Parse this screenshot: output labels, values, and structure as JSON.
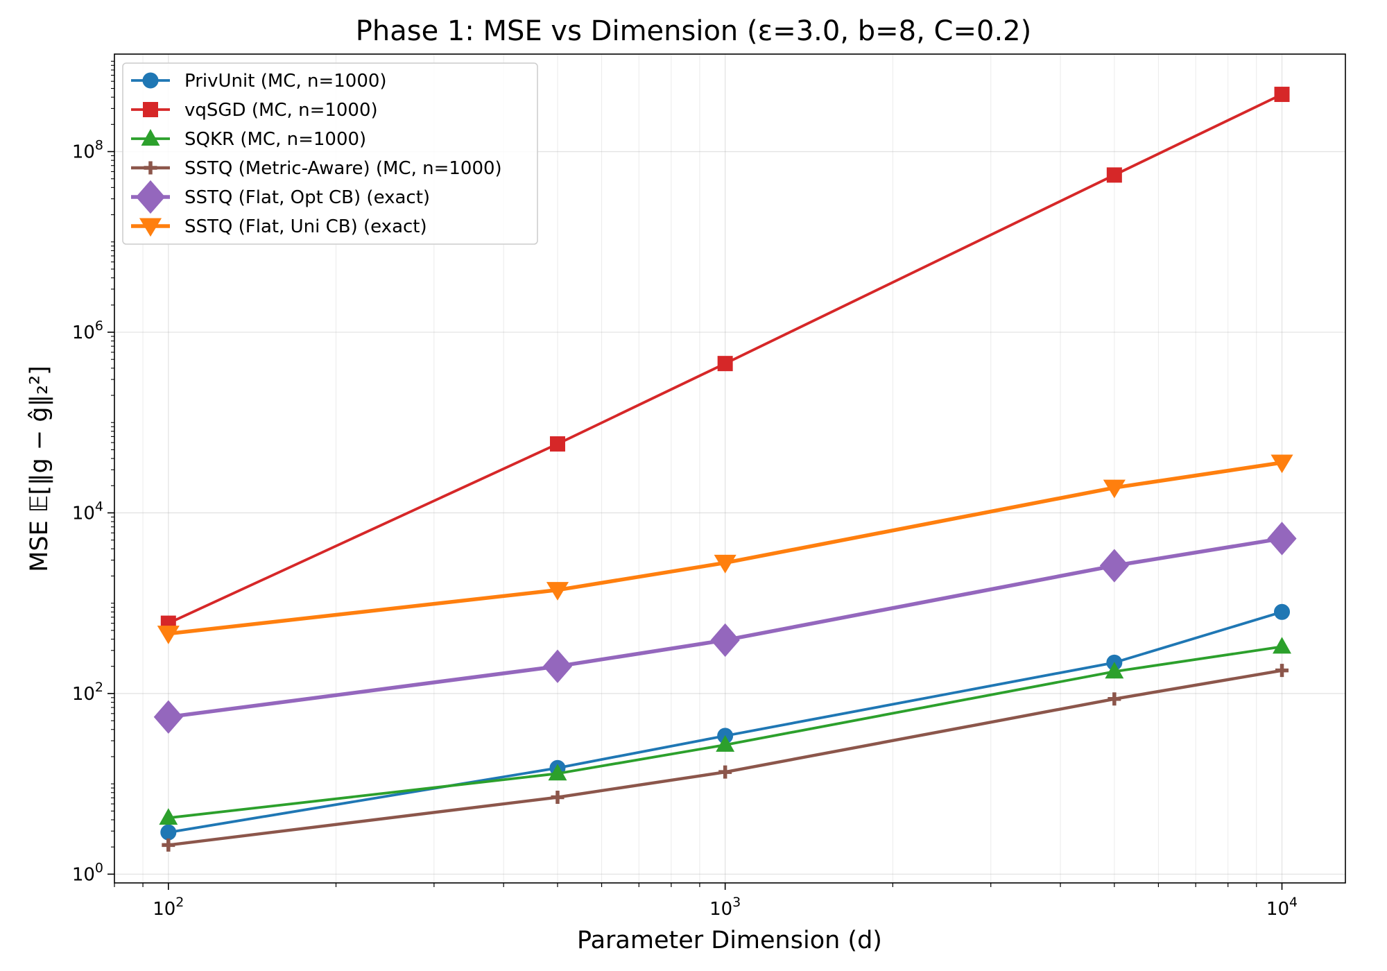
{
  "chart_data": {
    "type": "line",
    "title": "Phase 1: MSE vs Dimension (ε=3.0, b=8, C=0.2)",
    "xlabel": "Parameter Dimension (d)",
    "ylabel": "MSE  𝔼[‖g − ĝ‖₂²]",
    "xscale": "log",
    "yscale": "log",
    "xlim": [
      80,
      13000
    ],
    "ylim": [
      0.8,
      1200000000.0
    ],
    "x_ticks": [
      {
        "value": 100,
        "base": "10",
        "exp": "2"
      },
      {
        "value": 1000,
        "base": "10",
        "exp": "3"
      },
      {
        "value": 10000,
        "base": "10",
        "exp": "4"
      }
    ],
    "y_ticks": [
      {
        "value": 1,
        "base": "10",
        "exp": "0"
      },
      {
        "value": 100,
        "base": "10",
        "exp": "2"
      },
      {
        "value": 10000,
        "base": "10",
        "exp": "4"
      },
      {
        "value": 1000000,
        "base": "10",
        "exp": "6"
      },
      {
        "value": 100000000,
        "base": "10",
        "exp": "8"
      }
    ],
    "grid": true,
    "legend_position": "top-left",
    "x": [
      100,
      500,
      1000,
      5000,
      10000
    ],
    "series": [
      {
        "name": "PrivUnit (MC, n=1000)",
        "color": "#1f77b4",
        "marker": "circle",
        "values": [
          2.9,
          15,
          34,
          220,
          800
        ]
      },
      {
        "name": "vqSGD (MC, n=1000)",
        "color": "#d62728",
        "marker": "square",
        "values": [
          600,
          58000,
          450000,
          55000000,
          430000000
        ]
      },
      {
        "name": "SQKR (MC, n=1000)",
        "color": "#2ca02c",
        "marker": "triangle-up",
        "values": [
          4.2,
          13,
          27,
          175,
          330
        ]
      },
      {
        "name": "SSTQ (Metric-Aware) (MC, n=1000)",
        "color": "#8c564b",
        "marker": "plus",
        "values": [
          2.1,
          7.1,
          13.5,
          87,
          180
        ]
      },
      {
        "name": "SSTQ (Flat, Opt CB) (exact)",
        "color": "#9467bd",
        "marker": "diamond",
        "values": [
          55,
          200,
          390,
          2600,
          5200
        ]
      },
      {
        "name": "SSTQ (Flat, Uni CB) (exact)",
        "color": "#ff7f0e",
        "marker": "triangle-down",
        "values": [
          460,
          1400,
          2800,
          19000,
          36000
        ]
      }
    ]
  }
}
